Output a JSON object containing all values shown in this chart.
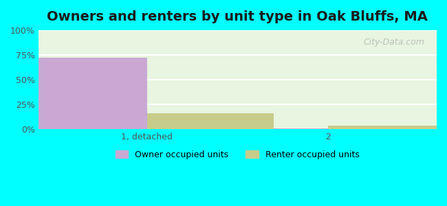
{
  "title": "Owners and renters by unit type in Oak Bluffs, MA",
  "categories": [
    "1, detached",
    "2"
  ],
  "owner_values": [
    72,
    0.8
  ],
  "renter_values": [
    16,
    4
  ],
  "owner_color": "#c9a8d4",
  "renter_color": "#c8cc8a",
  "bar_width": 0.35,
  "ylim": [
    0,
    100
  ],
  "yticks": [
    0,
    25,
    50,
    75,
    100
  ],
  "yticklabels": [
    "0%",
    "25%",
    "50%",
    "75%",
    "100%"
  ],
  "background_plot": "#e8f5e0",
  "background_fig": "#00ffff",
  "grid_color": "#ffffff",
  "title_fontsize": 14,
  "legend_labels": [
    "Owner occupied units",
    "Renter occupied units"
  ],
  "watermark": "City-Data.com"
}
